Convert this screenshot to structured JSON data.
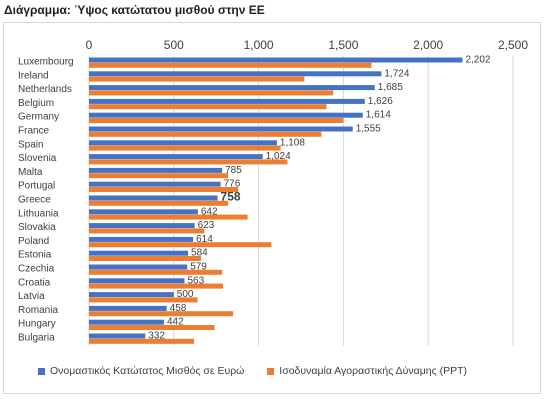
{
  "title": "Διάγραμμα: Ύψος κατώτατου μισθού στην ΕΕ",
  "colors": {
    "series0": "#4472c4",
    "series1": "#ed7d31",
    "grid": "#d9d9d9",
    "text": "#404040"
  },
  "chart_data": {
    "type": "bar",
    "orientation": "horizontal",
    "x_axis_position": "top",
    "grid": true,
    "legend_position": "bottom",
    "xlim": [
      0,
      2500
    ],
    "ticks": [
      "0",
      "500",
      "1,000",
      "1,500",
      "2,000",
      "2,500"
    ],
    "tick_values": [
      0,
      500,
      1000,
      1500,
      2000,
      2500
    ],
    "categories": [
      "Luxembourg",
      "Ireland",
      "Netherlands",
      "Belgium",
      "Germany",
      "France",
      "Spain",
      "Slovenia",
      "Malta",
      "Portugal",
      "Greece",
      "Lithuania",
      "Slovakia",
      "Poland",
      "Estonia",
      "Czechia",
      "Croatia",
      "Latvia",
      "Romania",
      "Hungary",
      "Bulgaria"
    ],
    "highlight_category": "Greece",
    "series": [
      {
        "name": "Ονομαστικός Κατώτατος Μισθός σε Ευρώ",
        "values": [
          2202,
          1724,
          1685,
          1626,
          1614,
          1555,
          1108,
          1024,
          785,
          776,
          758,
          642,
          623,
          614,
          584,
          579,
          563,
          500,
          458,
          442,
          332
        ],
        "labels": [
          "2,202",
          "1,724",
          "1,685",
          "1,626",
          "1,614",
          "1,555",
          "1,108",
          "1,024",
          "785",
          "776",
          "758",
          "642",
          "623",
          "614",
          "584",
          "579",
          "563",
          "500",
          "458",
          "442",
          "332"
        ]
      },
      {
        "name": "Ισοδυναμία Αγοραστικής Δύναμης (PPT)",
        "values": [
          1665,
          1270,
          1440,
          1400,
          1500,
          1370,
          1130,
          1170,
          820,
          880,
          820,
          935,
          680,
          1075,
          660,
          785,
          790,
          640,
          850,
          740,
          620
        ]
      }
    ]
  }
}
